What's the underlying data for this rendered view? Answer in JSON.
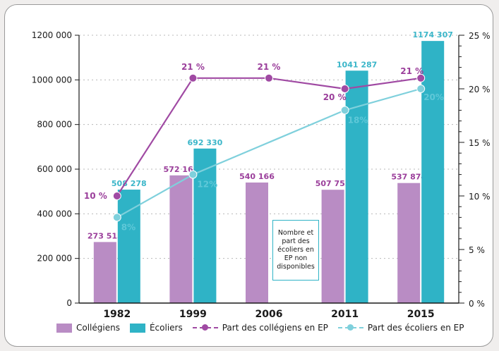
{
  "chart_data": {
    "type": "bar",
    "categories": [
      "1982",
      "1999",
      "2006",
      "2011",
      "2015"
    ],
    "series": [
      {
        "name": "Collégiens",
        "kind": "bar",
        "axis": "left",
        "color": "#b98cc4",
        "values": [
          273513,
          572165,
          540166,
          507755,
          537874
        ],
        "labels": [
          "273 513",
          "572 165",
          "540 166",
          "507 755",
          "537 874"
        ]
      },
      {
        "name": "Écoliers",
        "kind": "bar",
        "axis": "left",
        "color": "#2fb3c6",
        "values": [
          508278,
          692330,
          null,
          1041287,
          1174307
        ],
        "labels": [
          "508 278",
          "692 330",
          "",
          "1041 287",
          "1174 307"
        ]
      },
      {
        "name": "Part des collégiens en EP",
        "kind": "line",
        "axis": "right",
        "color": "#a04aa3",
        "values": [
          10,
          21,
          21,
          20,
          21
        ],
        "labels": [
          "10 %",
          "21 %",
          "21 %",
          "20 %",
          "21 %"
        ]
      },
      {
        "name": "Part des écoliers en EP",
        "kind": "line",
        "axis": "right",
        "color": "#7fd0dc",
        "values": [
          8,
          12,
          null,
          18,
          20
        ],
        "labels": [
          "8%",
          "12%",
          "",
          "18%",
          "20%"
        ]
      }
    ],
    "y_left": {
      "min": 0,
      "max": 1200000,
      "ticks": [
        "0",
        "200 000",
        "400 000",
        "600 000",
        "800 000",
        "1000 000",
        "1200 000"
      ]
    },
    "y_right": {
      "min": 0,
      "max": 25,
      "ticks": [
        "0 %",
        "5 %",
        "10 %",
        "15 %",
        "20 %",
        "25 %"
      ]
    },
    "grid": true,
    "legend_position": "bottom",
    "annotation": "Nombre et part des écoliers en EP non disponibles"
  }
}
